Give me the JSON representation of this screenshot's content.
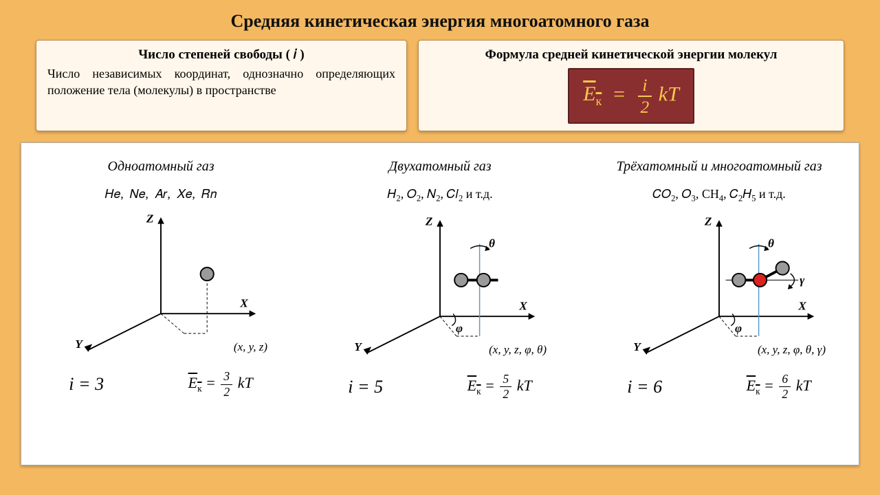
{
  "title": "Средняя кинетическая энергия многоатомного газа",
  "left_panel": {
    "header": "Число степеней свободы ( 𝑖 )",
    "body": "Число независимых координат, однозначно определяющих положение тела (молекулы) в пространстве"
  },
  "right_panel": {
    "header": "Формула средней кинетической энергии молекул",
    "formula": {
      "lhs_over": "E",
      "lhs_sub": "к",
      "num": "i",
      "den": "2",
      "tail": "kT"
    }
  },
  "gases": [
    {
      "title": "Одноатомный газ",
      "examples_html": "𝐻𝑒,&nbsp; 𝑁𝑒,&nbsp; 𝐴𝑟,&nbsp; 𝑋𝑒,&nbsp; 𝑅𝑛",
      "coords": "(x, y, z)",
      "i": "3",
      "num": "3",
      "type": "mono"
    },
    {
      "title": "Двухатомный газ",
      "examples_html": "𝐻<span class='sub'>2</span>, 𝑂<span class='sub'>2</span>, 𝑁<span class='sub'>2</span>, 𝐶𝑙<span class='sub'>2</span> и т.д.",
      "coords": "(x, y, z, φ, θ)",
      "i": "5",
      "num": "5",
      "type": "di"
    },
    {
      "title": "Трёхатомный и многоатомный газ",
      "examples_html": "𝐶𝑂<span class='sub'>2</span>, 𝑂<span class='sub'>3</span>, CH<span class='sub'>4</span>, 𝐶<span class='sub'>2</span>𝐻<span class='sub'>5</span> и т.д.",
      "coords": "(x, y, z, φ, θ, γ)",
      "i": "6",
      "num": "6",
      "type": "tri"
    }
  ],
  "colors": {
    "atom_fill": "#9a9a9a",
    "atom_stroke": "#000",
    "center_atom": "#d22",
    "page_bg": "#f4b860",
    "panel_bg": "#fff7ec",
    "formula_bg": "#8a2f2f",
    "formula_fg": "#f7c94b",
    "rot_axis": "#5599cc"
  }
}
